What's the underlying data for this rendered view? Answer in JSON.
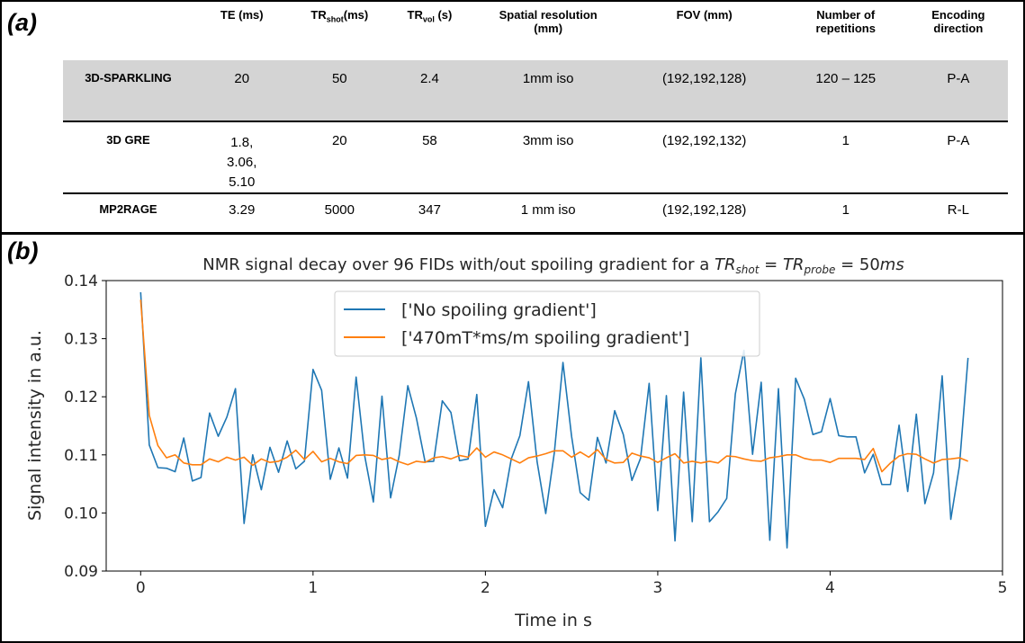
{
  "panels": {
    "a_label": "(a)",
    "b_label": "(b)"
  },
  "table": {
    "headers": [
      "TE (ms)",
      "TR",
      "TR",
      "Spatial resolution (mm)",
      "FOV (mm)",
      "Number of repetitions",
      "Encoding direction"
    ],
    "header_parts": {
      "trshot_main": "TR",
      "trshot_sub": "shot",
      "trshot_unit": "(ms)",
      "trvol_main": "TR",
      "trvol_sub": "vol",
      "trvol_unit": " (s)",
      "spatial_1": "Spatial resolution",
      "spatial_2": "(mm)",
      "reps_1": "Number of",
      "reps_2": "repetitions",
      "enc_1": "Encoding",
      "enc_2": "direction"
    },
    "rows": [
      {
        "name": "3D-SPARKLING",
        "te": "20",
        "trshot": "50",
        "trvol": "2.4",
        "res": "1mm iso",
        "fov": "(192,192,128)",
        "reps": "120 – 125",
        "enc": "P-A"
      },
      {
        "name": "3D GRE",
        "te_lines": [
          "1.8,",
          "3.06,",
          "5.10"
        ],
        "trshot": "20",
        "trvol": "58",
        "res": "3mm iso",
        "fov": "(192,192,132)",
        "reps": "1",
        "enc": "P-A"
      },
      {
        "name": "MP2RAGE",
        "te": "3.29",
        "trshot": "5000",
        "trvol": "347",
        "res": "1 mm iso",
        "fov": "(192,192,128)",
        "reps": "1",
        "enc": "R-L"
      }
    ]
  },
  "chart_data": {
    "type": "line",
    "title": "NMR signal decay over 96 FIDs with/out spoiling gradient for a TR_shot = TR_probe = 50ms",
    "title_parts": {
      "prefix": "NMR signal decay over 96 FIDs with/out spoiling gradient for a ",
      "tr": "TR",
      "shot": "shot",
      "eq1": " = ",
      "probe": "probe",
      "eq2": " = 50",
      "ms": "ms"
    },
    "xlabel": "Time in s",
    "ylabel": "Signal intensity in a.u.",
    "xlim": [
      -0.2,
      5.0
    ],
    "ylim": [
      0.09,
      0.14
    ],
    "xticks": [
      0,
      1,
      2,
      3,
      4,
      5
    ],
    "yticks": [
      0.09,
      0.1,
      0.11,
      0.12,
      0.13,
      0.14
    ],
    "ytick_labels": [
      "0.09",
      "0.10",
      "0.11",
      "0.12",
      "0.13",
      "0.14"
    ],
    "grid": false,
    "legend_position": "top-center",
    "series": [
      {
        "name": "['No spoiling gradient']",
        "color": "#1f77b4",
        "x": [
          0,
          0.05,
          0.1,
          0.15,
          0.2,
          0.25,
          0.3,
          0.35,
          0.4,
          0.45,
          0.5,
          0.55,
          0.6,
          0.65,
          0.7,
          0.75,
          0.8,
          0.85,
          0.9,
          0.95,
          1.0,
          1.05,
          1.1,
          1.15,
          1.2,
          1.25,
          1.3,
          1.35,
          1.4,
          1.45,
          1.5,
          1.55,
          1.6,
          1.65,
          1.7,
          1.75,
          1.8,
          1.85,
          1.9,
          1.95,
          2.0,
          2.05,
          2.1,
          2.15,
          2.2,
          2.25,
          2.3,
          2.35,
          2.4,
          2.45,
          2.5,
          2.55,
          2.6,
          2.65,
          2.7,
          2.75,
          2.8,
          2.85,
          2.9,
          2.95,
          3.0,
          3.05,
          3.1,
          3.15,
          3.2,
          3.25,
          3.3,
          3.35,
          3.4,
          3.45,
          3.5,
          3.55,
          3.6,
          3.65,
          3.7,
          3.75,
          3.8,
          3.85,
          3.9,
          3.95,
          4.0,
          4.05,
          4.1,
          4.15,
          4.2,
          4.25,
          4.3,
          4.35,
          4.4,
          4.45,
          4.5,
          4.55,
          4.6,
          4.65,
          4.7,
          4.75,
          4.8
        ],
        "y": [
          0.138,
          0.1117,
          0.1078,
          0.1077,
          0.1071,
          0.1129,
          0.1055,
          0.1061,
          0.1172,
          0.1132,
          0.1165,
          0.1214,
          0.0982,
          0.11,
          0.104,
          0.1113,
          0.107,
          0.1124,
          0.1076,
          0.1089,
          0.1247,
          0.1211,
          0.1058,
          0.1112,
          0.106,
          0.1234,
          0.1098,
          0.1019,
          0.1201,
          0.1026,
          0.1099,
          0.1219,
          0.1163,
          0.1088,
          0.1089,
          0.1193,
          0.1173,
          0.109,
          0.1093,
          0.1204,
          0.0977,
          0.104,
          0.1009,
          0.1093,
          0.1133,
          0.1226,
          0.1088,
          0.0999,
          0.1104,
          0.1259,
          0.1132,
          0.1035,
          0.1022,
          0.113,
          0.1086,
          0.1176,
          0.1135,
          0.1056,
          0.1094,
          0.1223,
          0.1004,
          0.1202,
          0.0952,
          0.1208,
          0.0985,
          0.1267,
          0.0985,
          0.1002,
          0.1025,
          0.1205,
          0.128,
          0.1101,
          0.1225,
          0.0953,
          0.1214,
          0.094,
          0.1232,
          0.1196,
          0.1135,
          0.114,
          0.1197,
          0.1133,
          0.1131,
          0.1131,
          0.1069,
          0.1101,
          0.1049,
          0.1049,
          0.1151,
          0.1037,
          0.117,
          0.1016,
          0.1069,
          0.1236,
          0.0989,
          0.1081,
          0.1267
        ]
      },
      {
        "name": "['470mT*ms/m spoiling gradient']",
        "color": "#ff7f0e",
        "x": [
          0,
          0.05,
          0.1,
          0.15,
          0.2,
          0.25,
          0.3,
          0.35,
          0.4,
          0.45,
          0.5,
          0.55,
          0.6,
          0.65,
          0.7,
          0.75,
          0.8,
          0.85,
          0.9,
          0.95,
          1.0,
          1.05,
          1.1,
          1.15,
          1.2,
          1.25,
          1.3,
          1.35,
          1.4,
          1.45,
          1.5,
          1.55,
          1.6,
          1.65,
          1.7,
          1.75,
          1.8,
          1.85,
          1.9,
          1.95,
          2.0,
          2.05,
          2.1,
          2.15,
          2.2,
          2.25,
          2.3,
          2.35,
          2.4,
          2.45,
          2.5,
          2.55,
          2.6,
          2.65,
          2.7,
          2.75,
          2.8,
          2.85,
          2.9,
          2.95,
          3.0,
          3.05,
          3.1,
          3.15,
          3.2,
          3.25,
          3.3,
          3.35,
          3.4,
          3.45,
          3.5,
          3.55,
          3.6,
          3.65,
          3.7,
          3.75,
          3.8,
          3.85,
          3.9,
          3.95,
          4.0,
          4.05,
          4.1,
          4.15,
          4.2,
          4.25,
          4.3,
          4.35,
          4.4,
          4.45,
          4.5,
          4.55,
          4.6,
          4.65,
          4.7,
          4.75,
          4.8
        ],
        "y": [
          0.1367,
          0.1168,
          0.1116,
          0.1095,
          0.11,
          0.1086,
          0.1083,
          0.1083,
          0.1093,
          0.1088,
          0.1096,
          0.1091,
          0.1096,
          0.1082,
          0.1093,
          0.1087,
          0.1089,
          0.1096,
          0.1108,
          0.1092,
          0.1106,
          0.1088,
          0.1094,
          0.1088,
          0.1085,
          0.1099,
          0.11,
          0.1099,
          0.1092,
          0.1095,
          0.1088,
          0.1083,
          0.1089,
          0.1087,
          0.1095,
          0.1097,
          0.1093,
          0.1099,
          0.1096,
          0.1112,
          0.1096,
          0.1105,
          0.11,
          0.1093,
          0.1086,
          0.1095,
          0.1098,
          0.1102,
          0.1107,
          0.1107,
          0.1096,
          0.1105,
          0.1096,
          0.1109,
          0.1092,
          0.1086,
          0.1087,
          0.1103,
          0.1098,
          0.1095,
          0.1087,
          0.1095,
          0.1102,
          0.1086,
          0.1089,
          0.1086,
          0.1089,
          0.1086,
          0.1098,
          0.1097,
          0.1093,
          0.109,
          0.1089,
          0.1095,
          0.1097,
          0.11,
          0.11,
          0.1094,
          0.1091,
          0.1091,
          0.1087,
          0.1094,
          0.1094,
          0.1094,
          0.1092,
          0.1111,
          0.1071,
          0.1086,
          0.1098,
          0.1102,
          0.1101,
          0.1093,
          0.1086,
          0.1092,
          0.1093,
          0.1095,
          0.1089
        ]
      }
    ]
  }
}
